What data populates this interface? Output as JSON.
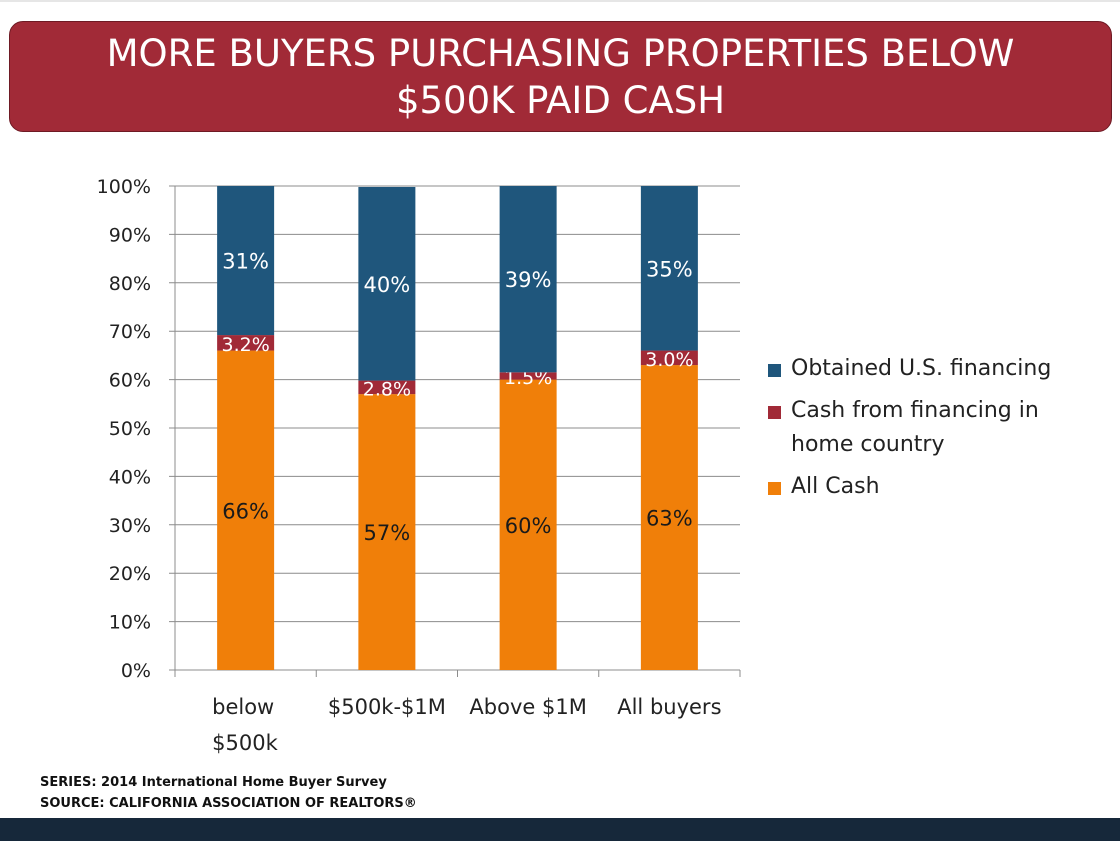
{
  "slide": {
    "title_line1": "MORE BUYERS PURCHASING PROPERTIES BELOW",
    "title_line2": "$500K PAID CASH"
  },
  "colors": {
    "title_bg": "#a12a37",
    "all_cash": "#f07f09",
    "cash_home_country": "#a12a37",
    "us_financing": "#1f567c",
    "footer_band": "#16283a"
  },
  "chart_data": {
    "type": "bar",
    "stacked": true,
    "percent_stacked": true,
    "categories": [
      "below $500k",
      "$500k-$1M",
      "Above $1M",
      "All buyers"
    ],
    "series": [
      {
        "name": "All Cash",
        "values": [
          66,
          57,
          60,
          63
        ],
        "labels": [
          "66%",
          "57%",
          "60%",
          "63%"
        ],
        "color": "#f07f09"
      },
      {
        "name": "Cash from financing in home country",
        "values": [
          3.2,
          2.8,
          1.5,
          3.0
        ],
        "labels": [
          "3.2%",
          "2.8%",
          "1.5%",
          "3.0%"
        ],
        "color": "#a12a37"
      },
      {
        "name": "Obtained U.S. financing",
        "values": [
          31,
          40,
          39,
          35
        ],
        "labels": [
          "31%",
          "40%",
          "39%",
          "35%"
        ],
        "color": "#1f567c"
      }
    ],
    "ylim": [
      0,
      100
    ],
    "yticks": [
      "0%",
      "10%",
      "20%",
      "30%",
      "40%",
      "50%",
      "60%",
      "70%",
      "80%",
      "90%",
      "100%"
    ],
    "legend_order": [
      "Obtained U.S. financing",
      "Cash from financing in home country",
      "All Cash"
    ],
    "legend_position": "right",
    "grid": true
  },
  "footer": {
    "series_note": "SERIES: 2014 International Home Buyer Survey",
    "source_note": "SOURCE:  CALIFORNIA ASSOCIATION OF REALTORS®"
  }
}
